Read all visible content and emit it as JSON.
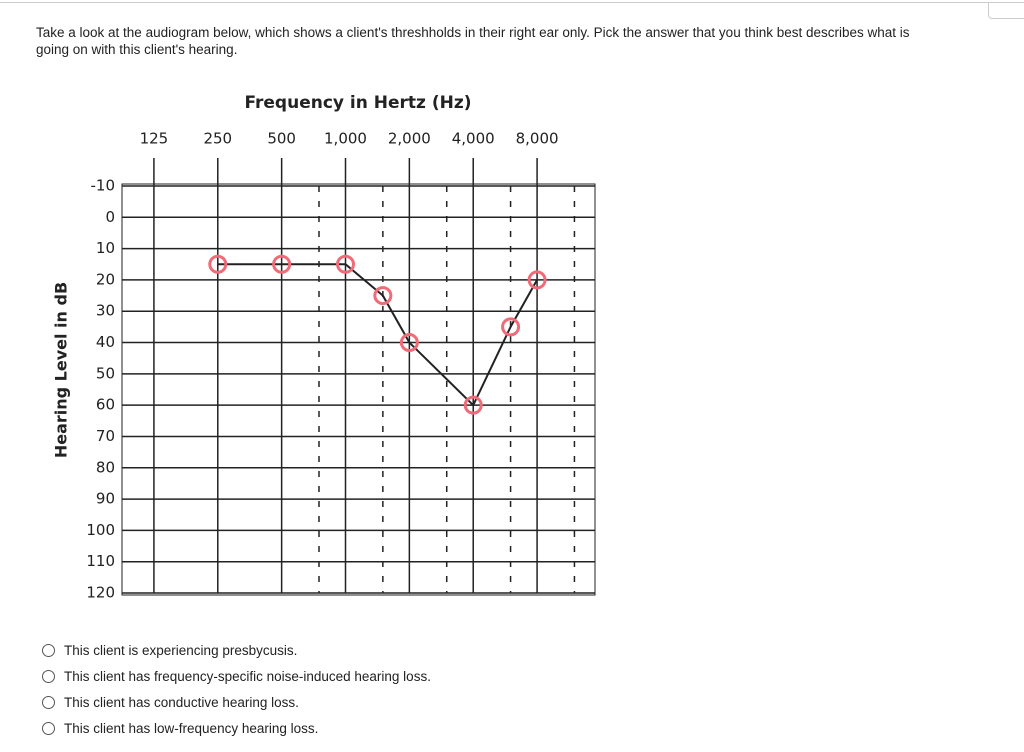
{
  "question": "Take a look at the audiogram below, which shows a client's threshholds in their right ear only. Pick the answer that you think best describes what is going on with this client's hearing.",
  "chart_data": {
    "type": "line",
    "title": "Frequency in Hertz (Hz)",
    "y_label": "Hearing Level in dB",
    "x_scale": "log",
    "xlim": [
      88.4,
      15000
    ],
    "xticks": [
      125,
      250,
      500,
      {
        "value": 1000,
        "label": "1,000"
      },
      {
        "value": 2000,
        "label": "2,000"
      },
      {
        "value": 4000,
        "label": "4,000"
      },
      {
        "value": 8000,
        "label": "8,000"
      }
    ],
    "ylim": [
      -10,
      120
    ],
    "y_inverted": true,
    "yticks": [
      -10,
      0,
      10,
      20,
      30,
      40,
      50,
      60,
      70,
      80,
      90,
      100,
      110,
      120
    ],
    "grid": true,
    "series": [
      {
        "color": "#f06b78",
        "x": [
          250,
          500,
          1000,
          1500,
          2000,
          4000,
          6000,
          8000
        ],
        "values": [
          15,
          15,
          15,
          25,
          40,
          60,
          35,
          20
        ]
      }
    ]
  },
  "options": [
    "This client is experiencing presbycusis.",
    "This client has frequency-specific noise-induced hearing loss.",
    "This client has conductive hearing loss.",
    "This client has low-frequency hearing loss."
  ]
}
